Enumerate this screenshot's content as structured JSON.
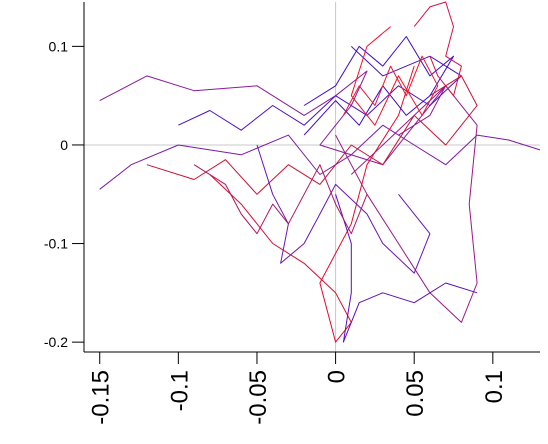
{
  "chart_data": {
    "type": "line",
    "title": "",
    "xlabel": "",
    "ylabel": "",
    "xlim": [
      -0.16,
      0.13
    ],
    "ylim": [
      -0.21,
      0.145
    ],
    "grid": false,
    "crosshair_at_zero": true,
    "x_ticks": [
      {
        "value": -0.15,
        "label": "-0.15"
      },
      {
        "value": -0.1,
        "label": "-0.1"
      },
      {
        "value": -0.05,
        "label": "-0.05"
      },
      {
        "value": 0,
        "label": "0"
      },
      {
        "value": 0.05,
        "label": "0.05"
      },
      {
        "value": 0.1,
        "label": "0.1"
      }
    ],
    "y_ticks": [
      {
        "value": 0.1,
        "label": "0.1"
      },
      {
        "value": 0,
        "label": "0"
      },
      {
        "value": -0.1,
        "label": "-0.1"
      },
      {
        "value": -0.2,
        "label": "-0.2"
      }
    ],
    "trajectory_colors": {
      "start": "#1a00cc",
      "end": "#ff0022"
    },
    "series": [
      {
        "color": "#8a1a9a",
        "x": [
          -0.15,
          -0.12,
          -0.09,
          -0.05,
          -0.02,
          0.0,
          0.02,
          0.01,
          -0.01,
          0.03,
          0.05,
          0.07,
          0.06,
          0.04
        ],
        "y": [
          0.045,
          0.07,
          0.055,
          0.06,
          0.03,
          0.05,
          0.075,
          0.04,
          0.0,
          -0.02,
          0.02,
          0.06,
          0.03,
          0.01
        ]
      },
      {
        "color": "#7a1aa8",
        "x": [
          -0.15,
          -0.13,
          -0.1,
          -0.06,
          -0.03,
          -0.01,
          0.01,
          0.03,
          0.05,
          0.07,
          0.09,
          0.11,
          0.13
        ],
        "y": [
          -0.045,
          -0.02,
          0.0,
          -0.01,
          0.01,
          -0.03,
          -0.01,
          0.02,
          0.0,
          -0.02,
          0.01,
          0.005,
          -0.005
        ]
      },
      {
        "color": "#4a10c8",
        "x": [
          -0.1,
          -0.08,
          -0.06,
          -0.04,
          -0.02,
          0.0,
          0.02,
          0.04,
          0.06,
          0.08,
          0.06,
          0.03,
          0.01
        ],
        "y": [
          0.02,
          0.035,
          0.015,
          0.04,
          0.02,
          0.05,
          0.03,
          0.06,
          0.04,
          0.07,
          0.09,
          0.07,
          0.1
        ]
      },
      {
        "color": "#cc1030",
        "x": [
          -0.12,
          -0.09,
          -0.07,
          -0.05,
          -0.03,
          -0.01,
          0.01,
          0.03,
          0.05,
          0.07,
          0.09,
          0.08,
          0.06
        ],
        "y": [
          -0.02,
          -0.035,
          -0.015,
          -0.05,
          -0.02,
          -0.04,
          0.0,
          -0.02,
          0.03,
          0.0,
          0.04,
          0.07,
          0.05
        ]
      },
      {
        "color": "#9a1888",
        "x": [
          0.0,
          0.02,
          0.04,
          0.06,
          0.08,
          0.09,
          0.085,
          0.09,
          0.07,
          0.05,
          0.03,
          0.01
        ],
        "y": [
          0.01,
          -0.05,
          -0.1,
          -0.15,
          -0.18,
          -0.14,
          -0.06,
          0.02,
          0.06,
          0.03,
          0.0,
          -0.03
        ]
      },
      {
        "color": "#e00a2a",
        "x": [
          -0.08,
          -0.06,
          -0.04,
          -0.02,
          0.0,
          0.01,
          0.0,
          -0.01,
          0.01,
          0.02,
          0.04,
          0.05
        ],
        "y": [
          -0.03,
          -0.06,
          -0.1,
          -0.12,
          -0.15,
          -0.18,
          -0.2,
          -0.14,
          -0.08,
          -0.02,
          0.03,
          0.08
        ]
      },
      {
        "color": "#3a08d0",
        "x": [
          -0.02,
          0.0,
          0.015,
          0.03,
          0.045,
          0.06,
          0.075,
          0.06,
          0.045,
          0.03,
          0.015,
          0.0,
          -0.02
        ],
        "y": [
          0.04,
          0.06,
          0.1,
          0.08,
          0.11,
          0.07,
          0.09,
          0.05,
          0.03,
          0.06,
          0.02,
          0.045,
          0.01
        ]
      },
      {
        "color": "#f0102a",
        "x": [
          0.005,
          0.015,
          0.025,
          0.035,
          0.045,
          0.055,
          0.065,
          0.055,
          0.04,
          0.025,
          0.01,
          0.02,
          0.035
        ],
        "y": [
          0.03,
          0.06,
          0.04,
          0.08,
          0.05,
          0.09,
          0.06,
          0.03,
          0.07,
          0.02,
          0.05,
          0.1,
          0.12
        ]
      },
      {
        "color": "#6a14b4",
        "x": [
          -0.05,
          -0.04,
          -0.03,
          -0.035,
          -0.02,
          -0.01,
          0.0,
          0.02,
          0.03,
          0.05,
          0.06,
          0.04
        ],
        "y": [
          0.0,
          -0.05,
          -0.08,
          -0.12,
          -0.1,
          -0.07,
          -0.04,
          -0.07,
          -0.1,
          -0.13,
          -0.09,
          -0.05
        ]
      },
      {
        "color": "#d41044",
        "x": [
          0.05,
          0.06,
          0.07,
          0.075,
          0.07,
          0.08,
          0.075,
          0.065,
          0.06
        ],
        "y": [
          0.12,
          0.14,
          0.145,
          0.12,
          0.09,
          0.08,
          0.05,
          0.07,
          0.09
        ]
      },
      {
        "color": "#5a0cc0",
        "x": [
          0.0,
          0.01,
          0.01,
          0.005,
          0.015,
          0.03,
          0.05,
          0.07,
          0.09
        ],
        "y": [
          -0.05,
          -0.1,
          -0.15,
          -0.2,
          -0.16,
          -0.15,
          -0.16,
          -0.14,
          -0.15
        ]
      },
      {
        "color": "#b01460",
        "x": [
          -0.09,
          -0.07,
          -0.06,
          -0.05,
          -0.04,
          -0.03,
          -0.02,
          -0.01,
          0.0,
          0.01,
          0.02
        ],
        "y": [
          -0.02,
          -0.04,
          -0.07,
          -0.09,
          -0.06,
          -0.08,
          -0.05,
          -0.02,
          -0.06,
          -0.09,
          -0.05
        ]
      }
    ]
  }
}
